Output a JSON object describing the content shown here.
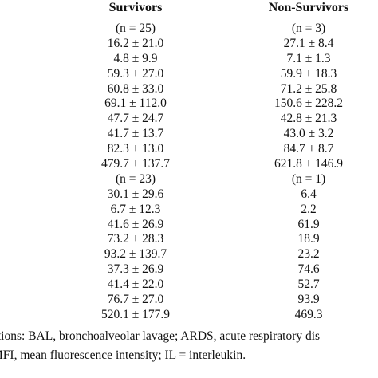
{
  "header": {
    "survivors": "Survivors",
    "non_survivors": "Non-Survivors"
  },
  "rows": [
    {
      "survivors": "(n = 25)",
      "non_survivors": "(n = 3)"
    },
    {
      "survivors": "16.2 ± 21.0",
      "non_survivors": "27.1 ± 8.4"
    },
    {
      "survivors": "4.8 ± 9.9",
      "non_survivors": "7.1 ± 1.3"
    },
    {
      "survivors": "59.3 ± 27.0",
      "non_survivors": "59.9 ± 18.3"
    },
    {
      "survivors": "60.8 ± 33.0",
      "non_survivors": "71.2 ± 25.8"
    },
    {
      "survivors": "69.1 ± 112.0",
      "non_survivors": "150.6 ± 228.2"
    },
    {
      "survivors": "47.7 ± 24.7",
      "non_survivors": "42.8 ± 21.3"
    },
    {
      "survivors": "41.7 ± 13.7",
      "non_survivors": "43.0 ± 3.2"
    },
    {
      "survivors": "82.3 ± 13.0",
      "non_survivors": "84.7 ± 8.7"
    },
    {
      "survivors": "479.7 ± 137.7",
      "non_survivors": "621.8 ± 146.9"
    },
    {
      "survivors": "(n = 23)",
      "non_survivors": "(n = 1)"
    },
    {
      "survivors": "30.1 ± 29.6",
      "non_survivors": "6.4"
    },
    {
      "survivors": "6.7 ± 12.3",
      "non_survivors": "2.2"
    },
    {
      "survivors": "41.6 ± 26.9",
      "non_survivors": "61.9"
    },
    {
      "survivors": "73.2 ± 28.3",
      "non_survivors": "18.9"
    },
    {
      "survivors": "93.2 ± 139.7",
      "non_survivors": "23.2"
    },
    {
      "survivors": "37.3 ± 26.9",
      "non_survivors": "74.6"
    },
    {
      "survivors": "41.4 ± 22.0",
      "non_survivors": "52.7"
    },
    {
      "survivors": "76.7 ± 27.0",
      "non_survivors": "93.9"
    },
    {
      "survivors": "520.1 ± 177.9",
      "non_survivors": "469.3"
    }
  ],
  "footnote": {
    "line1": "ations: BAL, bronchoalveolar lavage; ARDS, acute respiratory dis",
    "line2": "MFI, mean fluorescence intensity; IL = interleukin."
  }
}
